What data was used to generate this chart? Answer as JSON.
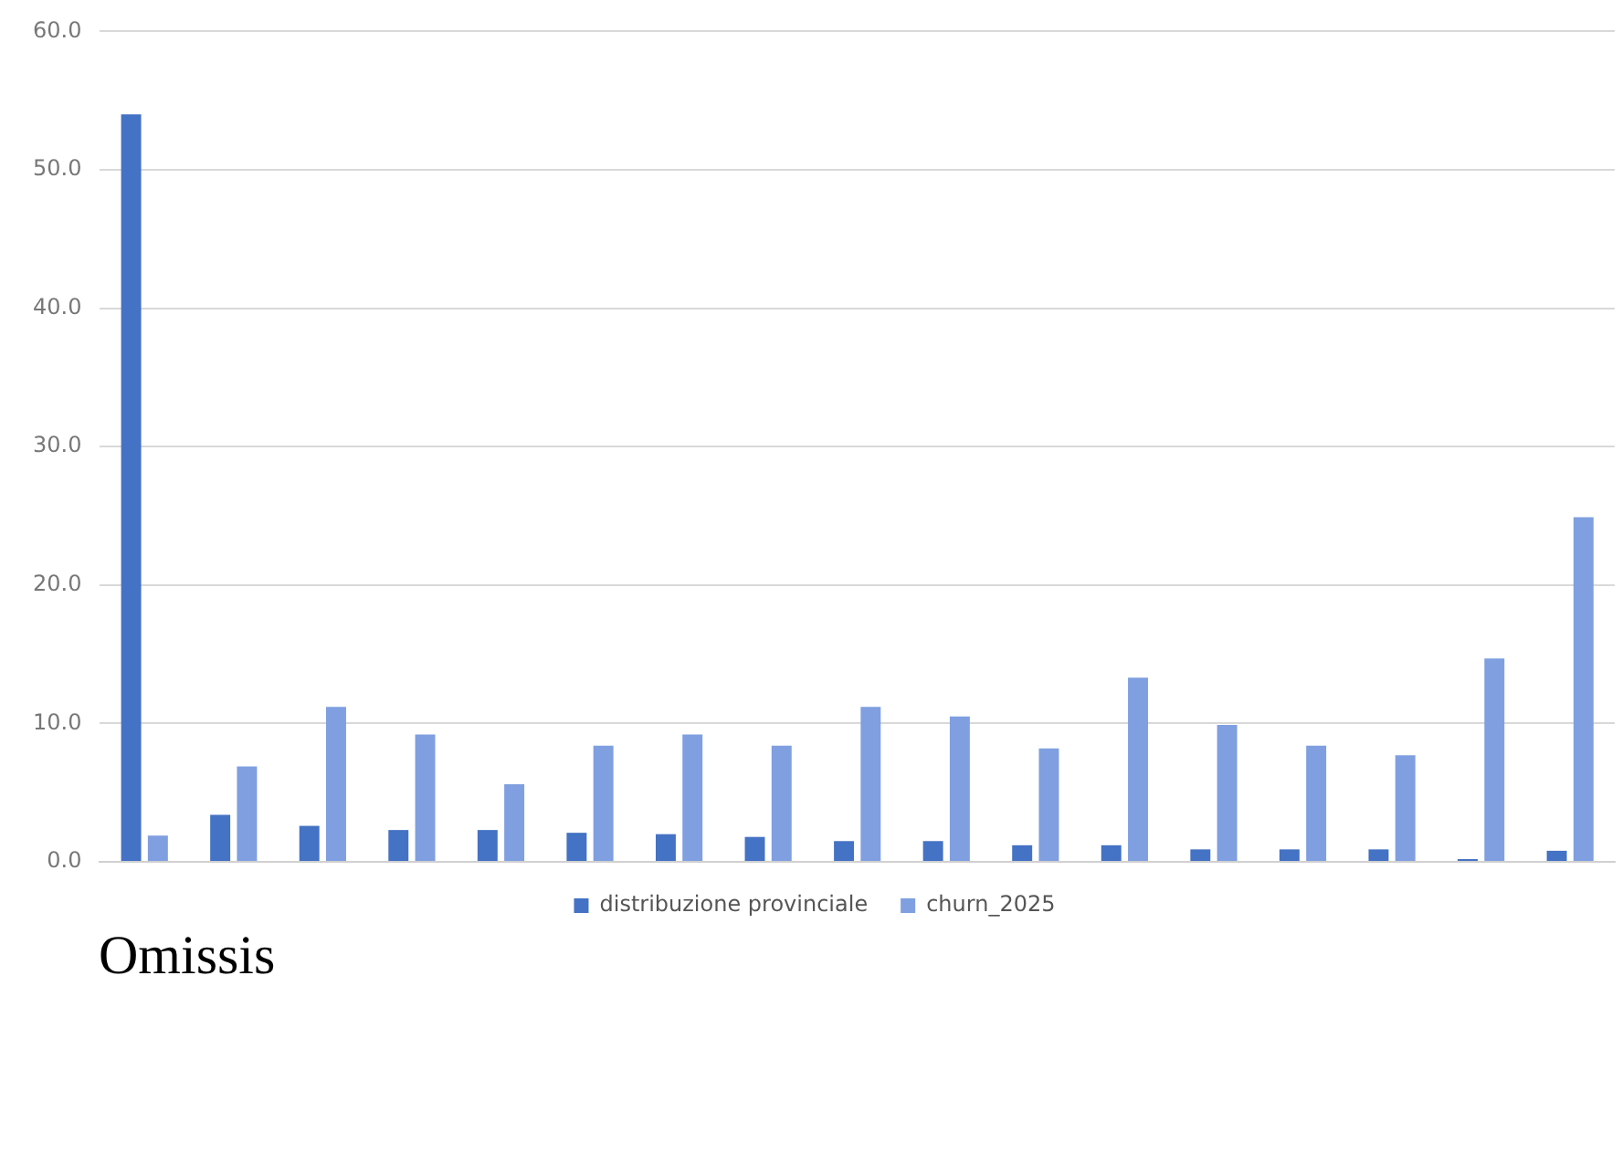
{
  "chart_data": {
    "type": "bar",
    "categories": [
      null,
      null,
      null,
      null,
      null,
      null,
      null,
      null,
      null,
      null,
      null,
      null,
      null,
      null,
      null,
      null,
      null
    ],
    "series": [
      {
        "name": "distribuzione provinciale",
        "color": "#4472c4",
        "values": [
          54.0,
          3.4,
          2.6,
          2.3,
          2.3,
          2.1,
          2.0,
          1.8,
          1.5,
          1.5,
          1.2,
          1.2,
          0.9,
          0.9,
          0.9,
          0.2,
          0.8
        ]
      },
      {
        "name": "churn_2025",
        "color": "#7f9fe0",
        "values": [
          1.9,
          6.9,
          11.2,
          9.2,
          5.6,
          8.4,
          9.2,
          8.4,
          11.2,
          10.5,
          8.2,
          13.3,
          9.9,
          8.4,
          7.7,
          14.7,
          24.9
        ]
      }
    ],
    "ylim": [
      0,
      60
    ],
    "yticks": [
      {
        "value": 0,
        "label": "0.0"
      },
      {
        "value": 10,
        "label": "10.0"
      },
      {
        "value": 20,
        "label": "20.0"
      },
      {
        "value": 30,
        "label": "30.0"
      },
      {
        "value": 40,
        "label": "40.0"
      },
      {
        "value": 50,
        "label": "50.0"
      },
      {
        "value": 60,
        "label": "60.0"
      }
    ],
    "grid": "y",
    "legend": "bottom",
    "tick_labels": "y",
    "annotations": [
      "Omissis"
    ]
  }
}
